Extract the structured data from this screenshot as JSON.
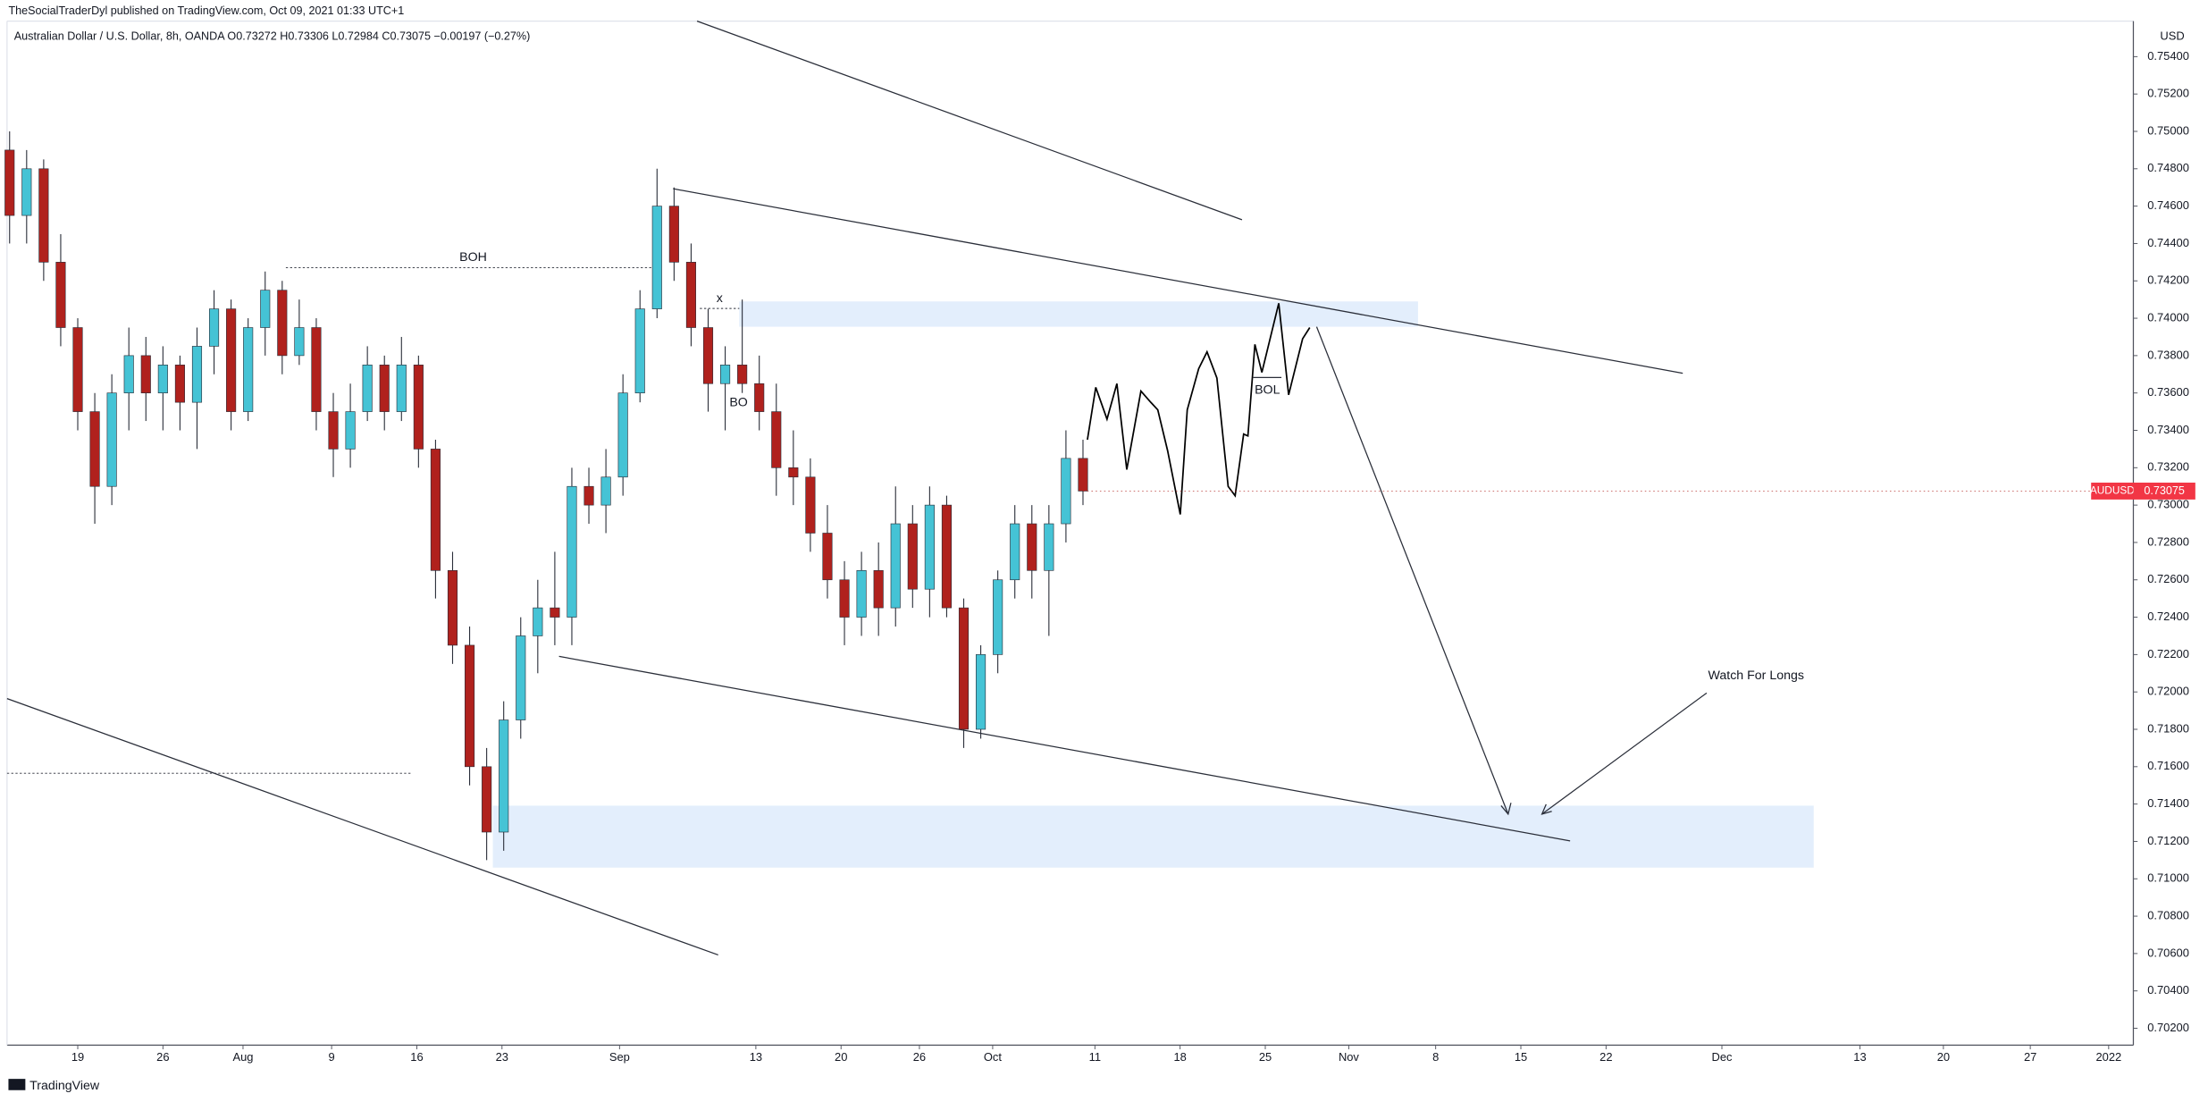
{
  "header": {
    "publisher": "TheSocialTraderDyl published on TradingView.com, Oct 09, 2021 01:33 UTC+1",
    "brand": "TradingView"
  },
  "chart_data": {
    "type": "candlestick",
    "title": "Australian Dollar / U.S. Dollar, 8h, OANDA  O0.73272  H0.73306  L0.72984  C0.73075  −0.00197 (−0.27%)",
    "currency": "USD",
    "symbol": "AUDUSD",
    "last_price": 0.73075,
    "up_color": "#45c3d5",
    "down_color": "#b0211d",
    "wick_color": "#2a2e39",
    "grid": false,
    "x": [
      0,
      1,
      2,
      3,
      4,
      5,
      6,
      7,
      8,
      9,
      10,
      11,
      12,
      13,
      14,
      15,
      16,
      17,
      18,
      19,
      20,
      21,
      22,
      23,
      24,
      25,
      26,
      27,
      28,
      29,
      30,
      31,
      32,
      33,
      34,
      35,
      36,
      37,
      38,
      39,
      40,
      41,
      42,
      43,
      44,
      45,
      46,
      47,
      48,
      49,
      50,
      51,
      52,
      53,
      54,
      55,
      56,
      57,
      58,
      59,
      60,
      61,
      62,
      63
    ],
    "open": [
      0.749,
      0.7455,
      0.748,
      0.743,
      0.7395,
      0.735,
      0.731,
      0.736,
      0.738,
      0.736,
      0.7375,
      0.7355,
      0.7385,
      0.7405,
      0.735,
      0.7395,
      0.7415,
      0.738,
      0.7395,
      0.735,
      0.733,
      0.735,
      0.7375,
      0.735,
      0.7375,
      0.733,
      0.7265,
      0.7225,
      0.716,
      0.7125,
      0.7185,
      0.723,
      0.7245,
      0.724,
      0.731,
      0.73,
      0.7315,
      0.736,
      0.7405,
      0.746,
      0.743,
      0.7395,
      0.7365,
      0.7375,
      0.7365,
      0.735,
      0.732,
      0.7315,
      0.7285,
      0.726,
      0.724,
      0.7265,
      0.7245,
      0.729,
      0.7255,
      0.73,
      0.7245,
      0.718,
      0.722,
      0.726,
      0.729,
      0.7265,
      0.729,
      0.7325
    ],
    "high": [
      0.75,
      0.749,
      0.7485,
      0.7445,
      0.74,
      0.736,
      0.737,
      0.7395,
      0.739,
      0.7385,
      0.738,
      0.7395,
      0.7415,
      0.741,
      0.74,
      0.7425,
      0.742,
      0.741,
      0.74,
      0.736,
      0.7365,
      0.7385,
      0.738,
      0.739,
      0.738,
      0.7335,
      0.7275,
      0.7235,
      0.717,
      0.7195,
      0.724,
      0.726,
      0.7275,
      0.732,
      0.732,
      0.733,
      0.737,
      0.7415,
      0.748,
      0.747,
      0.744,
      0.7405,
      0.7385,
      0.741,
      0.738,
      0.7365,
      0.734,
      0.7325,
      0.73,
      0.727,
      0.7275,
      0.728,
      0.731,
      0.73,
      0.731,
      0.7305,
      0.725,
      0.7225,
      0.7265,
      0.73,
      0.73,
      0.73,
      0.734,
      0.7335
    ],
    "low": [
      0.744,
      0.744,
      0.742,
      0.7385,
      0.734,
      0.729,
      0.73,
      0.734,
      0.7345,
      0.734,
      0.734,
      0.733,
      0.737,
      0.734,
      0.7345,
      0.738,
      0.737,
      0.7375,
      0.734,
      0.7315,
      0.732,
      0.7345,
      0.734,
      0.7345,
      0.732,
      0.725,
      0.7215,
      0.715,
      0.711,
      0.7115,
      0.7175,
      0.721,
      0.7225,
      0.7225,
      0.729,
      0.7285,
      0.7305,
      0.7355,
      0.74,
      0.742,
      0.7385,
      0.735,
      0.734,
      0.736,
      0.734,
      0.7305,
      0.73,
      0.7275,
      0.725,
      0.7225,
      0.723,
      0.723,
      0.7235,
      0.7245,
      0.724,
      0.724,
      0.717,
      0.7175,
      0.721,
      0.725,
      0.725,
      0.723,
      0.728,
      0.73
    ],
    "close": [
      0.7455,
      0.748,
      0.743,
      0.7395,
      0.735,
      0.731,
      0.736,
      0.738,
      0.736,
      0.7375,
      0.7355,
      0.7385,
      0.7405,
      0.735,
      0.7395,
      0.7415,
      0.738,
      0.7395,
      0.735,
      0.733,
      0.735,
      0.7375,
      0.735,
      0.7375,
      0.733,
      0.7265,
      0.7225,
      0.716,
      0.7125,
      0.7185,
      0.723,
      0.7245,
      0.724,
      0.731,
      0.73,
      0.7315,
      0.736,
      0.7405,
      0.746,
      0.743,
      0.7395,
      0.7365,
      0.7375,
      0.7365,
      0.735,
      0.732,
      0.7315,
      0.7285,
      0.726,
      0.724,
      0.7265,
      0.7245,
      0.729,
      0.7255,
      0.73,
      0.7245,
      0.718,
      0.722,
      0.726,
      0.729,
      0.7265,
      0.729,
      0.7325,
      0.73075
    ],
    "projection": {
      "color": "#000000",
      "x": [
        63.26,
        63.75,
        64.41,
        64.99,
        65.57,
        66.4,
        66.98,
        67.39,
        67.97,
        68.71,
        69.12,
        69.79,
        70.28,
        70.86,
        71.52,
        71.93,
        72.43,
        72.68,
        73.09,
        73.5,
        74.49,
        75.07,
        75.89,
        76.31
      ],
      "values": [
        0.7335,
        0.7363,
        0.7346,
        0.7365,
        0.7319,
        0.7361,
        0.7355,
        0.7351,
        0.7329,
        0.7295,
        0.7351,
        0.7373,
        0.7382,
        0.7368,
        0.731,
        0.7305,
        0.7338,
        0.7337,
        0.7386,
        0.7371,
        0.7408,
        0.7359,
        0.7389,
        0.7395
      ]
    },
    "annotations": [
      "BOH",
      "x",
      "BO",
      "BOL",
      "Watch For Longs"
    ],
    "xlim": [
      -0.15,
      124.65
    ],
    "xticks": [
      {
        "value": 4,
        "label": "19"
      },
      {
        "value": 9,
        "label": "26"
      },
      {
        "value": 13.7,
        "label": "Aug"
      },
      {
        "value": 18.9,
        "label": "9"
      },
      {
        "value": 23.9,
        "label": "16"
      },
      {
        "value": 28.9,
        "label": "23"
      },
      {
        "value": 35.8,
        "label": "Sep"
      },
      {
        "value": 43.8,
        "label": "13"
      },
      {
        "value": 48.8,
        "label": "20"
      },
      {
        "value": 53.4,
        "label": "26"
      },
      {
        "value": 57.7,
        "label": "Oct"
      },
      {
        "value": 63.7,
        "label": "11"
      },
      {
        "value": 68.7,
        "label": "18"
      },
      {
        "value": 73.7,
        "label": "25"
      },
      {
        "value": 78.6,
        "label": "Nov"
      },
      {
        "value": 83.7,
        "label": "8"
      },
      {
        "value": 88.7,
        "label": "15"
      },
      {
        "value": 93.7,
        "label": "22"
      },
      {
        "value": 100.5,
        "label": "Dec"
      },
      {
        "value": 108.6,
        "label": "13"
      },
      {
        "value": 113.5,
        "label": "20"
      },
      {
        "value": 118.6,
        "label": "27"
      },
      {
        "value": 123.2,
        "label": "2022"
      }
    ],
    "ylim": [
      0.7011,
      0.7559
    ],
    "yticks": [
      {
        "value": 0.702,
        "label": "0.70200"
      },
      {
        "value": 0.704,
        "label": "0.70400"
      },
      {
        "value": 0.706,
        "label": "0.70600"
      },
      {
        "value": 0.708,
        "label": "0.70800"
      },
      {
        "value": 0.71,
        "label": "0.71000"
      },
      {
        "value": 0.712,
        "label": "0.71200"
      },
      {
        "value": 0.714,
        "label": "0.71400"
      },
      {
        "value": 0.716,
        "label": "0.71600"
      },
      {
        "value": 0.718,
        "label": "0.71800"
      },
      {
        "value": 0.72,
        "label": "0.72000"
      },
      {
        "value": 0.722,
        "label": "0.72200"
      },
      {
        "value": 0.724,
        "label": "0.72400"
      },
      {
        "value": 0.726,
        "label": "0.72600"
      },
      {
        "value": 0.728,
        "label": "0.72800"
      },
      {
        "value": 0.73,
        "label": "0.73000"
      },
      {
        "value": 0.732,
        "label": "0.73200"
      },
      {
        "value": 0.734,
        "label": "0.73400"
      },
      {
        "value": 0.736,
        "label": "0.73600"
      },
      {
        "value": 0.738,
        "label": "0.73800"
      },
      {
        "value": 0.74,
        "label": "0.74000"
      },
      {
        "value": 0.742,
        "label": "0.74200"
      },
      {
        "value": 0.744,
        "label": "0.74400"
      },
      {
        "value": 0.746,
        "label": "0.74600"
      },
      {
        "value": 0.748,
        "label": "0.74800"
      },
      {
        "value": 0.75,
        "label": "0.75000"
      },
      {
        "value": 0.752,
        "label": "0.75200"
      },
      {
        "value": 0.754,
        "label": "0.75400"
      }
    ]
  }
}
